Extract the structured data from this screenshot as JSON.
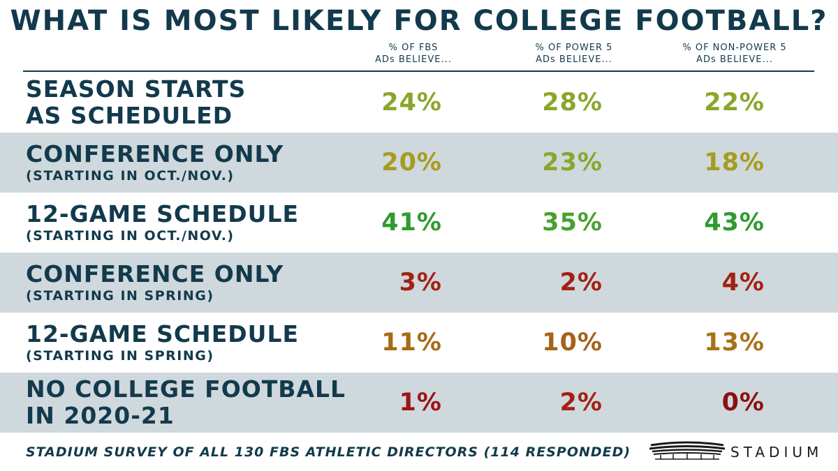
{
  "chart_data": {
    "type": "table",
    "title": "WHAT IS MOST LIKELY FOR COLLEGE FOOTBALL?",
    "columns": [
      {
        "line1": "% OF FBS",
        "line2": "ADs BELIEVE..."
      },
      {
        "line1": "% OF POWER 5",
        "line2": "ADs BELIEVE..."
      },
      {
        "line1": "% OF NON-POWER 5",
        "line2": "ADs BELIEVE..."
      }
    ],
    "rows": [
      {
        "main": "SEASON STARTS",
        "main2": "AS SCHEDULED",
        "sub": "",
        "values": [
          "24%",
          "28%",
          "22%"
        ],
        "colors": [
          "#8aa62a",
          "#8aa62a",
          "#8aa62a"
        ]
      },
      {
        "main": "CONFERENCE ONLY",
        "main2": "",
        "sub": "(STARTING IN OCT./NOV.)",
        "values": [
          "20%",
          "23%",
          "18%"
        ],
        "colors": [
          "#a69c1e",
          "#8aa62a",
          "#a69c1e"
        ]
      },
      {
        "main": "12-GAME SCHEDULE",
        "main2": "",
        "sub": "(STARTING IN OCT./NOV.)",
        "values": [
          "41%",
          "35%",
          "43%"
        ],
        "colors": [
          "#2f9b2f",
          "#48a030",
          "#2f9b2f"
        ]
      },
      {
        "main": "CONFERENCE ONLY",
        "main2": "",
        "sub": "(STARTING IN SPRING)",
        "values": [
          "3%",
          "2%",
          "4%"
        ],
        "colors": [
          "#a32114",
          "#a32114",
          "#a32114"
        ]
      },
      {
        "main": "12-GAME SCHEDULE",
        "main2": "",
        "sub": "(STARTING IN SPRING)",
        "values": [
          "11%",
          "10%",
          "13%"
        ],
        "colors": [
          "#a66a14",
          "#a6621a",
          "#a67418"
        ]
      },
      {
        "main": "NO COLLEGE FOOTBALL",
        "main2": "IN 2020-21",
        "sub": "",
        "values": [
          "1%",
          "2%",
          "0%"
        ],
        "colors": [
          "#9c1414",
          "#a32114",
          "#8a1010"
        ]
      }
    ],
    "footnote": "STADIUM SURVEY OF ALL 130 FBS ATHLETIC DIRECTORS (114 RESPONDED)"
  },
  "logo": {
    "word": "STADIUM",
    "icon": "stadium-logo-icon"
  },
  "colors": {
    "navy": "#123a4c",
    "shade": "#cfd8dc"
  }
}
